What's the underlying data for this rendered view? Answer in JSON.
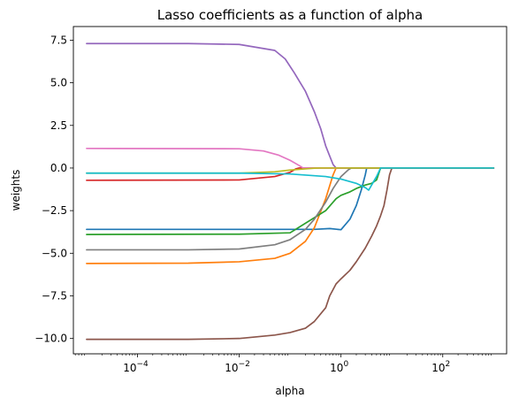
{
  "chart_data": {
    "type": "line",
    "title": "Lasso coefficients as a function of alpha",
    "xlabel": "alpha",
    "ylabel": "weights",
    "xscale": "log",
    "xlim": [
      5.5e-06,
      1800
    ],
    "ylim": [
      -10.9,
      8.3
    ],
    "grid": false,
    "legend": "none",
    "x_ticks": [
      {
        "value": 0.0001,
        "label": "10^-4"
      },
      {
        "value": 0.01,
        "label": "10^-2"
      },
      {
        "value": 1,
        "label": "10^0"
      },
      {
        "value": 100,
        "label": "10^2"
      }
    ],
    "y_ticks": [
      {
        "value": 7.5,
        "label": "7.5"
      },
      {
        "value": 5.0,
        "label": "5.0"
      },
      {
        "value": 2.5,
        "label": "2.5"
      },
      {
        "value": 0.0,
        "label": "0.0"
      },
      {
        "value": -2.5,
        "label": "−2.5"
      },
      {
        "value": -5.0,
        "label": "−5.0"
      },
      {
        "value": -7.5,
        "label": "−7.5"
      },
      {
        "value": -10.0,
        "label": "−10.0"
      }
    ],
    "series": [
      {
        "color": "#1f77b4",
        "x": [
          1e-05,
          0.01,
          0.1,
          0.3,
          0.6,
          1.0,
          1.5,
          2.0,
          2.5,
          3.0,
          3.2,
          1000
        ],
        "y": [
          -3.6,
          -3.6,
          -3.6,
          -3.6,
          -3.55,
          -3.62,
          -3.0,
          -2.2,
          -1.3,
          -0.4,
          0.0,
          0.0
        ]
      },
      {
        "color": "#ff7f0e",
        "x": [
          1e-05,
          0.001,
          0.01,
          0.05,
          0.1,
          0.2,
          0.3,
          0.5,
          0.7,
          0.8,
          1000
        ],
        "y": [
          -5.6,
          -5.58,
          -5.5,
          -5.3,
          -5.0,
          -4.3,
          -3.5,
          -1.8,
          -0.4,
          0.0,
          0.0
        ]
      },
      {
        "color": "#2ca02c",
        "x": [
          1e-05,
          0.01,
          0.1,
          0.5,
          0.8,
          1.0,
          1.5,
          2.0,
          3.0,
          4.0,
          5.0,
          6.0,
          1000
        ],
        "y": [
          -3.9,
          -3.88,
          -3.8,
          -2.5,
          -1.8,
          -1.6,
          -1.4,
          -1.2,
          -1.0,
          -0.9,
          -0.7,
          0.0,
          0.0
        ]
      },
      {
        "color": "#d62728",
        "x": [
          1e-05,
          0.01,
          0.05,
          0.1,
          0.13,
          0.15,
          1000
        ],
        "y": [
          -0.72,
          -0.7,
          -0.5,
          -0.25,
          -0.05,
          0.0,
          0.0
        ]
      },
      {
        "color": "#9467bd",
        "x": [
          1e-05,
          0.001,
          0.01,
          0.05,
          0.08,
          0.12,
          0.2,
          0.3,
          0.4,
          0.5,
          0.6,
          0.7,
          0.8,
          1000
        ],
        "y": [
          7.3,
          7.3,
          7.25,
          6.9,
          6.4,
          5.6,
          4.5,
          3.3,
          2.3,
          1.3,
          0.7,
          0.2,
          0.0,
          0.0
        ]
      },
      {
        "color": "#8c564b",
        "x": [
          1e-05,
          0.001,
          0.01,
          0.05,
          0.1,
          0.2,
          0.3,
          0.5,
          0.6,
          0.8,
          1.0,
          1.5,
          2.0,
          3.0,
          4.0,
          5.0,
          6.0,
          7.0,
          8.0,
          9.0,
          10.0,
          1000
        ],
        "y": [
          -10.05,
          -10.05,
          -10.0,
          -9.8,
          -9.65,
          -9.4,
          -9.0,
          -8.2,
          -7.5,
          -6.8,
          -6.5,
          -6.0,
          -5.5,
          -4.7,
          -4.0,
          -3.4,
          -2.8,
          -2.2,
          -1.3,
          -0.4,
          0.0,
          0.0
        ]
      },
      {
        "color": "#e377c2",
        "x": [
          1e-05,
          0.01,
          0.03,
          0.06,
          0.1,
          0.15,
          0.18,
          1000
        ],
        "y": [
          1.15,
          1.13,
          1.0,
          0.75,
          0.45,
          0.15,
          0.0,
          0.0
        ]
      },
      {
        "color": "#7f7f7f",
        "x": [
          1e-05,
          0.001,
          0.01,
          0.05,
          0.1,
          0.2,
          0.3,
          0.5,
          0.7,
          1.0,
          1.4,
          1.6,
          1000
        ],
        "y": [
          -4.8,
          -4.8,
          -4.75,
          -4.5,
          -4.2,
          -3.6,
          -3.0,
          -2.0,
          -1.2,
          -0.5,
          -0.1,
          0.0,
          0.0
        ]
      },
      {
        "color": "#bcbd22",
        "x": [
          1e-05,
          0.01,
          0.05,
          0.1,
          0.2,
          0.3,
          0.4,
          1000
        ],
        "y": [
          -0.3,
          -0.3,
          -0.22,
          -0.12,
          -0.05,
          -0.01,
          0.0,
          0.0
        ]
      },
      {
        "color": "#17becf",
        "x": [
          1e-05,
          0.01,
          0.1,
          0.5,
          1.0,
          2.0,
          3.0,
          3.5,
          4.0,
          5.0,
          6.0,
          1000
        ],
        "y": [
          -0.3,
          -0.3,
          -0.35,
          -0.5,
          -0.65,
          -0.9,
          -1.15,
          -1.3,
          -1.0,
          -0.5,
          0.0,
          0.0
        ]
      }
    ]
  }
}
